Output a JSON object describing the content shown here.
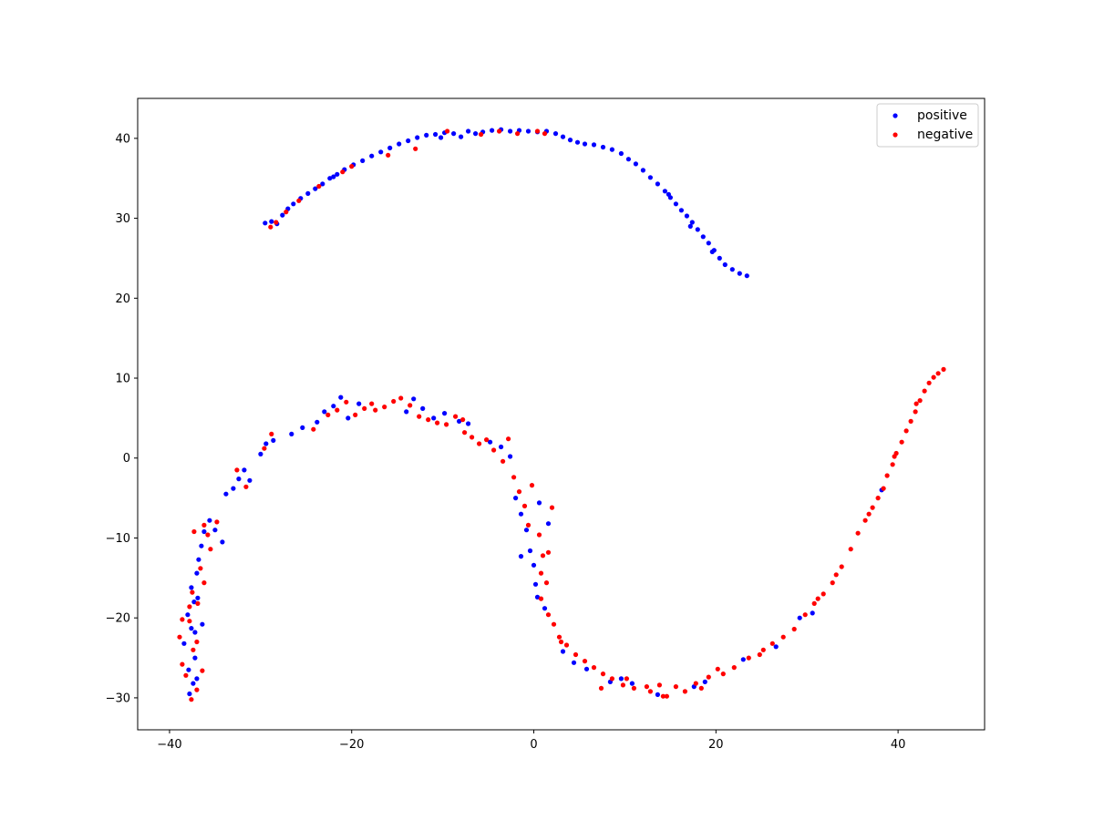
{
  "chart_data": {
    "type": "scatter",
    "title": "",
    "xlabel": "",
    "ylabel": "",
    "xlim": [
      -43.5,
      49.5
    ],
    "ylim": [
      -34,
      45
    ],
    "xticks": [
      -40,
      -20,
      0,
      20,
      40
    ],
    "yticks": [
      -30,
      -20,
      -10,
      0,
      10,
      20,
      30,
      40
    ],
    "xtick_labels": [
      "−40",
      "−20",
      "0",
      "20",
      "40"
    ],
    "ytick_labels": [
      "−30",
      "−20",
      "−10",
      "0",
      "10",
      "20",
      "30",
      "40"
    ],
    "grid": false,
    "legend_position": "top-right",
    "series": [
      {
        "name": "positive",
        "color": "#0000ff",
        "points": [
          [
            -29.5,
            29.4
          ],
          [
            -28.8,
            29.6
          ],
          [
            -28.2,
            29.3
          ],
          [
            -27.6,
            30.4
          ],
          [
            -27.0,
            31.2
          ],
          [
            -26.4,
            31.8
          ],
          [
            -25.6,
            32.5
          ],
          [
            -24.8,
            33.1
          ],
          [
            -24.0,
            33.7
          ],
          [
            -23.2,
            34.3
          ],
          [
            -22.4,
            35.0
          ],
          [
            -21.6,
            35.5
          ],
          [
            -20.8,
            36.1
          ],
          [
            -19.8,
            36.7
          ],
          [
            -18.8,
            37.2
          ],
          [
            -17.8,
            37.8
          ],
          [
            -16.8,
            38.3
          ],
          [
            -15.8,
            38.8
          ],
          [
            -14.8,
            39.3
          ],
          [
            -13.8,
            39.7
          ],
          [
            -12.8,
            40.1
          ],
          [
            -11.8,
            40.4
          ],
          [
            -10.8,
            40.5
          ],
          [
            -9.8,
            40.7
          ],
          [
            -8.8,
            40.6
          ],
          [
            -8.0,
            40.2
          ],
          [
            -7.2,
            40.9
          ],
          [
            -6.4,
            40.6
          ],
          [
            -5.6,
            40.8
          ],
          [
            -4.6,
            41.0
          ],
          [
            -3.6,
            41.1
          ],
          [
            -2.6,
            40.9
          ],
          [
            -1.6,
            41.0
          ],
          [
            -0.6,
            40.9
          ],
          [
            0.4,
            40.8
          ],
          [
            1.4,
            40.9
          ],
          [
            2.4,
            40.6
          ],
          [
            3.2,
            40.2
          ],
          [
            4.0,
            39.8
          ],
          [
            4.8,
            39.5
          ],
          [
            5.6,
            39.3
          ],
          [
            6.6,
            39.2
          ],
          [
            7.6,
            38.9
          ],
          [
            8.6,
            38.6
          ],
          [
            9.6,
            38.1
          ],
          [
            10.4,
            37.4
          ],
          [
            11.2,
            36.8
          ],
          [
            12.0,
            36.0
          ],
          [
            12.8,
            35.1
          ],
          [
            13.6,
            34.3
          ],
          [
            14.4,
            33.4
          ],
          [
            15.0,
            32.6
          ],
          [
            15.6,
            31.8
          ],
          [
            16.2,
            31.0
          ],
          [
            16.8,
            30.3
          ],
          [
            17.4,
            29.5
          ],
          [
            18.0,
            28.6
          ],
          [
            18.6,
            27.7
          ],
          [
            19.2,
            26.9
          ],
          [
            19.8,
            26.0
          ],
          [
            20.4,
            25.0
          ],
          [
            21.0,
            24.2
          ],
          [
            21.8,
            23.6
          ],
          [
            22.6,
            23.1
          ],
          [
            23.4,
            22.8
          ],
          [
            14.8,
            33.0
          ],
          [
            17.2,
            29.0
          ],
          [
            19.6,
            25.8
          ],
          [
            -22.0,
            35.2
          ],
          [
            -10.2,
            40.1
          ],
          [
            -37.8,
            -29.5
          ],
          [
            -37.4,
            -28.2
          ],
          [
            -37.9,
            -26.5
          ],
          [
            -37.2,
            -25.0
          ],
          [
            -38.4,
            -23.2
          ],
          [
            -37.6,
            -21.3
          ],
          [
            -38.0,
            -19.6
          ],
          [
            -37.3,
            -18.0
          ],
          [
            -37.6,
            -16.2
          ],
          [
            -37.0,
            -14.4
          ],
          [
            -36.8,
            -12.7
          ],
          [
            -36.5,
            -11.0
          ],
          [
            -36.2,
            -9.2
          ],
          [
            -35.6,
            -7.8
          ],
          [
            -35.0,
            -9.0
          ],
          [
            -34.2,
            -10.5
          ],
          [
            -33.8,
            -4.5
          ],
          [
            -33.0,
            -3.8
          ],
          [
            -32.4,
            -2.6
          ],
          [
            -31.8,
            -1.5
          ],
          [
            -31.2,
            -2.8
          ],
          [
            -30.0,
            0.5
          ],
          [
            -29.4,
            1.8
          ],
          [
            -28.6,
            2.2
          ],
          [
            -26.6,
            3.0
          ],
          [
            -25.4,
            3.8
          ],
          [
            -23.8,
            4.5
          ],
          [
            -23.0,
            5.8
          ],
          [
            -22.0,
            6.5
          ],
          [
            -21.2,
            7.6
          ],
          [
            -20.4,
            5.0
          ],
          [
            -19.2,
            6.8
          ],
          [
            -14.0,
            5.8
          ],
          [
            -13.2,
            7.4
          ],
          [
            -12.2,
            6.2
          ],
          [
            -11.0,
            5.0
          ],
          [
            -9.8,
            5.6
          ],
          [
            -8.2,
            4.6
          ],
          [
            -7.2,
            4.3
          ],
          [
            -4.8,
            2.0
          ],
          [
            -3.6,
            1.4
          ],
          [
            -2.6,
            0.2
          ],
          [
            -2.0,
            -5.0
          ],
          [
            -1.4,
            -7.0
          ],
          [
            -0.8,
            -9.0
          ],
          [
            -0.4,
            -11.6
          ],
          [
            0.0,
            -13.4
          ],
          [
            0.2,
            -15.8
          ],
          [
            0.4,
            -17.4
          ],
          [
            1.2,
            -18.8
          ],
          [
            -1.4,
            -12.3
          ],
          [
            0.6,
            -5.6
          ],
          [
            1.6,
            -8.2
          ],
          [
            3.2,
            -24.2
          ],
          [
            4.4,
            -25.6
          ],
          [
            5.8,
            -26.4
          ],
          [
            8.4,
            -28.0
          ],
          [
            9.6,
            -27.6
          ],
          [
            10.8,
            -28.2
          ],
          [
            13.6,
            -29.6
          ],
          [
            17.6,
            -28.6
          ],
          [
            18.8,
            -28.0
          ],
          [
            23.0,
            -25.2
          ],
          [
            26.6,
            -23.6
          ],
          [
            30.6,
            -19.4
          ],
          [
            38.2,
            -4.0
          ],
          [
            29.2,
            -20.0
          ],
          [
            -37.0,
            -27.6
          ],
          [
            -36.4,
            -20.8
          ],
          [
            -36.9,
            -17.5
          ],
          [
            -37.2,
            -21.8
          ]
        ]
      },
      {
        "name": "negative",
        "color": "#ff0000",
        "points": [
          [
            -28.9,
            28.9
          ],
          [
            -28.3,
            29.5
          ],
          [
            -27.2,
            30.8
          ],
          [
            -25.8,
            32.2
          ],
          [
            -23.6,
            34.0
          ],
          [
            -21.0,
            35.8
          ],
          [
            -20.0,
            36.5
          ],
          [
            -16.0,
            37.9
          ],
          [
            -13.0,
            38.7
          ],
          [
            -9.5,
            40.9
          ],
          [
            -5.8,
            40.5
          ],
          [
            -3.8,
            40.9
          ],
          [
            -1.8,
            40.6
          ],
          [
            0.4,
            40.9
          ],
          [
            1.2,
            40.6
          ],
          [
            -37.6,
            -30.2
          ],
          [
            -37.0,
            -29.0
          ],
          [
            -38.2,
            -27.2
          ],
          [
            -38.6,
            -25.8
          ],
          [
            -37.4,
            -24.0
          ],
          [
            -38.9,
            -22.4
          ],
          [
            -37.8,
            -20.4
          ],
          [
            -36.9,
            -18.2
          ],
          [
            -37.5,
            -16.8
          ],
          [
            -36.6,
            -13.8
          ],
          [
            -37.3,
            -9.2
          ],
          [
            -36.2,
            -8.4
          ],
          [
            -35.5,
            -11.4
          ],
          [
            -35.8,
            -9.6
          ],
          [
            -32.6,
            -1.5
          ],
          [
            -31.6,
            -3.6
          ],
          [
            -29.6,
            1.2
          ],
          [
            -28.8,
            3.0
          ],
          [
            -24.2,
            3.6
          ],
          [
            -22.6,
            5.4
          ],
          [
            -21.6,
            6.0
          ],
          [
            -20.6,
            7.0
          ],
          [
            -19.6,
            5.4
          ],
          [
            -18.6,
            6.2
          ],
          [
            -17.4,
            6.0
          ],
          [
            -16.4,
            6.4
          ],
          [
            -15.4,
            7.1
          ],
          [
            -14.6,
            7.5
          ],
          [
            -13.6,
            6.6
          ],
          [
            -12.6,
            5.2
          ],
          [
            -11.6,
            4.8
          ],
          [
            -10.6,
            4.4
          ],
          [
            -9.6,
            4.2
          ],
          [
            -8.6,
            5.2
          ],
          [
            -7.6,
            3.2
          ],
          [
            -6.8,
            2.6
          ],
          [
            -6.0,
            1.8
          ],
          [
            -5.2,
            2.3
          ],
          [
            -4.4,
            1.0
          ],
          [
            -3.4,
            -0.4
          ],
          [
            -2.8,
            2.4
          ],
          [
            -2.2,
            -2.4
          ],
          [
            -1.6,
            -4.2
          ],
          [
            -1.0,
            -6.0
          ],
          [
            -0.6,
            -8.4
          ],
          [
            0.6,
            -9.6
          ],
          [
            1.0,
            -12.2
          ],
          [
            1.6,
            -11.8
          ],
          [
            0.8,
            -14.4
          ],
          [
            1.4,
            -15.6
          ],
          [
            0.8,
            -17.6
          ],
          [
            1.6,
            -19.6
          ],
          [
            2.2,
            -20.8
          ],
          [
            2.8,
            -22.4
          ],
          [
            3.6,
            -23.4
          ],
          [
            4.6,
            -24.6
          ],
          [
            5.6,
            -25.4
          ],
          [
            6.6,
            -26.2
          ],
          [
            7.6,
            -27.0
          ],
          [
            8.6,
            -27.6
          ],
          [
            9.8,
            -28.4
          ],
          [
            11.0,
            -28.8
          ],
          [
            12.4,
            -28.6
          ],
          [
            13.8,
            -28.4
          ],
          [
            14.6,
            -29.8
          ],
          [
            15.6,
            -28.6
          ],
          [
            16.6,
            -29.2
          ],
          [
            17.8,
            -28.2
          ],
          [
            19.2,
            -27.4
          ],
          [
            20.8,
            -27.0
          ],
          [
            22.0,
            -26.2
          ],
          [
            23.6,
            -25.0
          ],
          [
            24.8,
            -24.6
          ],
          [
            26.2,
            -23.2
          ],
          [
            27.4,
            -22.4
          ],
          [
            28.6,
            -21.4
          ],
          [
            29.8,
            -19.6
          ],
          [
            30.8,
            -18.2
          ],
          [
            31.8,
            -17.0
          ],
          [
            32.8,
            -15.6
          ],
          [
            33.8,
            -13.6
          ],
          [
            34.8,
            -11.4
          ],
          [
            35.6,
            -9.4
          ],
          [
            36.4,
            -7.8
          ],
          [
            37.2,
            -6.2
          ],
          [
            37.8,
            -5.0
          ],
          [
            38.4,
            -3.8
          ],
          [
            38.8,
            -2.2
          ],
          [
            39.4,
            -0.8
          ],
          [
            39.8,
            0.6
          ],
          [
            40.4,
            2.0
          ],
          [
            40.9,
            3.4
          ],
          [
            41.4,
            4.6
          ],
          [
            41.9,
            5.8
          ],
          [
            42.4,
            7.2
          ],
          [
            42.9,
            8.4
          ],
          [
            43.4,
            9.4
          ],
          [
            43.9,
            10.1
          ],
          [
            44.4,
            10.6
          ],
          [
            45.0,
            11.1
          ],
          [
            10.2,
            -27.6
          ],
          [
            12.8,
            -29.2
          ],
          [
            14.2,
            -29.8
          ],
          [
            18.4,
            -28.8
          ],
          [
            20.2,
            -26.4
          ],
          [
            25.2,
            -24.0
          ],
          [
            31.2,
            -17.6
          ],
          [
            33.2,
            -14.6
          ],
          [
            36.8,
            -7.0
          ],
          [
            39.6,
            0.2
          ],
          [
            42.0,
            6.8
          ],
          [
            -37.8,
            -18.6
          ],
          [
            -37.0,
            -23.0
          ],
          [
            -36.4,
            -26.6
          ],
          [
            -38.6,
            -20.2
          ],
          [
            -36.2,
            -15.6
          ],
          [
            -34.8,
            -8.0
          ],
          [
            -17.8,
            6.8
          ],
          [
            -7.8,
            4.8
          ],
          [
            2.0,
            -6.2
          ],
          [
            -0.2,
            -3.4
          ],
          [
            3.0,
            -23.0
          ],
          [
            7.4,
            -28.8
          ]
        ]
      }
    ]
  }
}
